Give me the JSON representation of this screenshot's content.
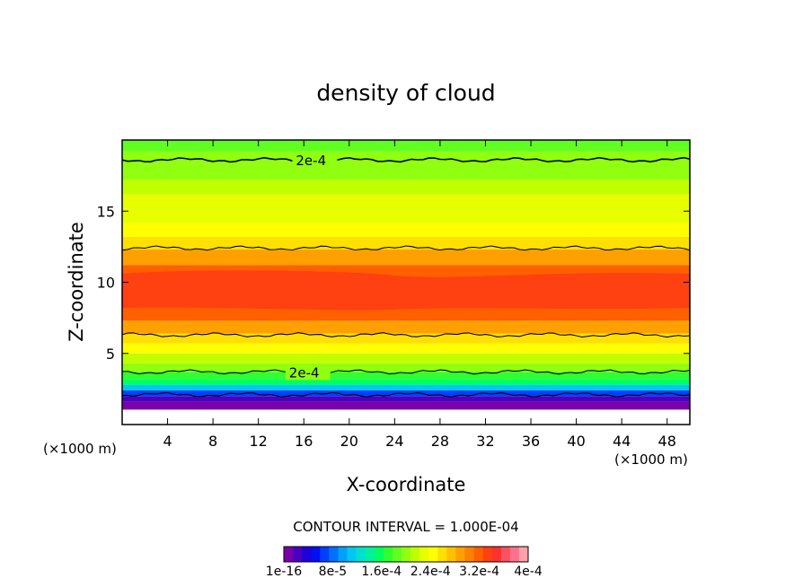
{
  "chart_data": {
    "type": "heatmap",
    "title": "density of cloud",
    "xlabel": "X-coordinate",
    "ylabel": "Z-coordinate",
    "x_unit": "(×1000 m)",
    "z_unit": "(×1000 m)",
    "xlim": [
      0,
      50
    ],
    "ylim": [
      0,
      20
    ],
    "x_ticks": [
      4,
      8,
      12,
      16,
      20,
      24,
      28,
      32,
      36,
      40,
      44,
      48
    ],
    "y_ticks": [
      5,
      10,
      15
    ],
    "contour_interval_label": "CONTOUR INTERVAL = 1.000E-04",
    "contour_label": "2e-4",
    "colorbar_labels": [
      "1e-16",
      "8e-5",
      "1.6e-4",
      "2.4e-4",
      "3.2e-4",
      "4e-4"
    ],
    "colorbar_colors": [
      "#7a00a8",
      "#4a00c0",
      "#2000d8",
      "#0010f0",
      "#0040ff",
      "#0070ff",
      "#00a0ff",
      "#00c8f0",
      "#00e0d0",
      "#00f0a0",
      "#00ff60",
      "#30ff30",
      "#60ff20",
      "#90ff10",
      "#c0ff00",
      "#e8ff00",
      "#ffff00",
      "#ffe000",
      "#ffc000",
      "#ffa000",
      "#ff8000",
      "#ff6000",
      "#ff4010",
      "#ff3030",
      "#ff5060",
      "#ff7090",
      "#ffa0a8"
    ],
    "bands": [
      {
        "z0": 0.0,
        "z1": 1.05,
        "value": 0.0
      },
      {
        "z0": 1.05,
        "z1": 1.6,
        "value": 5e-06
      },
      {
        "z0": 1.6,
        "z1": 2.0,
        "value": 3e-05
      },
      {
        "z0": 2.0,
        "z1": 2.4,
        "value": 7e-05
      },
      {
        "z0": 2.4,
        "z1": 2.8,
        "value": 0.00012
      },
      {
        "z0": 2.8,
        "z1": 3.2,
        "value": 0.000155
      },
      {
        "z0": 3.2,
        "z1": 3.7,
        "value": 0.00018
      },
      {
        "z0": 3.7,
        "z1": 4.3,
        "value": 0.000205
      },
      {
        "z0": 4.3,
        "z1": 5.0,
        "value": 0.00023
      },
      {
        "z0": 5.0,
        "z1": 5.7,
        "value": 0.00025
      },
      {
        "z0": 5.7,
        "z1": 6.4,
        "value": 0.000275
      },
      {
        "z0": 6.4,
        "z1": 7.3,
        "value": 0.0003
      },
      {
        "z0": 7.3,
        "z1": 11.2,
        "value": 0.000325
      },
      {
        "z0": 11.2,
        "z1": 12.3,
        "value": 0.0003
      },
      {
        "z0": 12.3,
        "z1": 13.2,
        "value": 0.000275
      },
      {
        "z0": 13.2,
        "z1": 14.2,
        "value": 0.000255
      },
      {
        "z0": 14.2,
        "z1": 15.2,
        "value": 0.000245
      },
      {
        "z0": 15.2,
        "z1": 16.2,
        "value": 0.000235
      },
      {
        "z0": 16.2,
        "z1": 17.2,
        "value": 0.000225
      },
      {
        "z0": 17.2,
        "z1": 18.2,
        "value": 0.000215
      },
      {
        "z0": 18.2,
        "z1": 19.2,
        "value": 0.000205
      },
      {
        "z0": 19.2,
        "z1": 20.0,
        "value": 0.000195
      }
    ],
    "core": {
      "z0": 8.2,
      "z1": 10.6,
      "value": 0.00035
    },
    "contours": [
      {
        "z": 18.6,
        "value": 0.0002,
        "labeled": true,
        "label_x": 15.3
      },
      {
        "z": 12.4,
        "value": 0.0003,
        "labeled": false
      },
      {
        "z": 6.3,
        "value": 0.0003,
        "labeled": false
      },
      {
        "z": 3.7,
        "value": 0.0002,
        "labeled": true,
        "label_x": 14.7
      },
      {
        "z": 2.1,
        "value": 0.0001,
        "labeled": false
      }
    ]
  }
}
